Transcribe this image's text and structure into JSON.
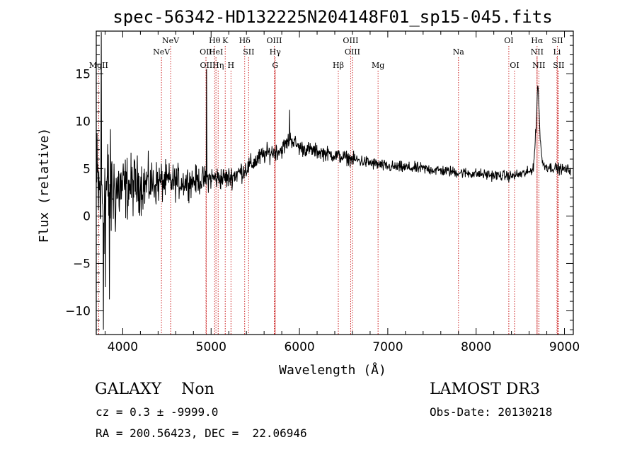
{
  "chart_data": {
    "type": "line",
    "title": "spec-56342-HD132225N204148F01_sp15-045.fits",
    "xlabel": "Wavelength (Å)",
    "ylabel": "Flux (relative)",
    "xlim": [
      3700,
      9100
    ],
    "ylim": [
      -12.5,
      19.5
    ],
    "xticks": [
      4000,
      5000,
      6000,
      7000,
      8000,
      9000
    ],
    "yticks": [
      -10,
      -5,
      0,
      5,
      10,
      15
    ],
    "spectrum_anchors": {
      "x": [
        3700,
        3750,
        3790,
        3850,
        3950,
        4100,
        4300,
        4500,
        4700,
        4900,
        5000,
        5200,
        5400,
        5600,
        5800,
        5900,
        6000,
        6200,
        6400,
        6600,
        6800,
        7000,
        7400,
        7800,
        8200,
        8400,
        8600,
        8650,
        8680,
        8700,
        8720,
        8750,
        8800,
        9000,
        9070
      ],
      "y": [
        3,
        2,
        2.5,
        2.5,
        2.8,
        3.2,
        3.4,
        3.6,
        3.6,
        3.8,
        4,
        4,
        5,
        6.5,
        7,
        8.2,
        7.2,
        6.8,
        6.4,
        6,
        5.6,
        5.2,
        5,
        4.6,
        4.3,
        4.2,
        4.6,
        5.2,
        9.5,
        14.5,
        9,
        5.5,
        5.2,
        4.9,
        4.9
      ]
    },
    "noise_profile": {
      "x": [
        3700,
        3800,
        4000,
        4500,
        5000,
        6000,
        7000,
        8000,
        9000
      ],
      "amplitude": [
        5,
        5,
        2.5,
        1.4,
        0.9,
        0.6,
        0.45,
        0.4,
        0.4
      ]
    },
    "emission_lines": [
      {
        "wavelength": 3727,
        "label": "MgII",
        "row": 3
      },
      {
        "wavelength": 4438,
        "label": "NeV",
        "row": 2
      },
      {
        "wavelength": 4542,
        "label": "NeV",
        "row": 1
      },
      {
        "wavelength": 4942,
        "label": "OII",
        "row": 2
      },
      {
        "wavelength": 4945,
        "label": "OII",
        "row": 3
      },
      {
        "wavelength": 5040,
        "label": "Hθ",
        "row": 1
      },
      {
        "wavelength": 5055,
        "label": "HeI",
        "row": 2
      },
      {
        "wavelength": 5080,
        "label": "Hη",
        "row": 3
      },
      {
        "wavelength": 5160,
        "label": "K",
        "row": 1
      },
      {
        "wavelength": 5225,
        "label": "H",
        "row": 3
      },
      {
        "wavelength": 5380,
        "label": "Hδ",
        "row": 1
      },
      {
        "wavelength": 5425,
        "label": "SII",
        "row": 2
      },
      {
        "wavelength": 5715,
        "label": "OIII",
        "row": 1
      },
      {
        "wavelength": 5725,
        "label": "Hγ",
        "row": 2
      },
      {
        "wavelength": 5725,
        "label": "G",
        "row": 3
      },
      {
        "wavelength": 6440,
        "label": "Hβ",
        "row": 3
      },
      {
        "wavelength": 6580,
        "label": "OIII",
        "row": 1
      },
      {
        "wavelength": 6600,
        "label": "OIII",
        "row": 2
      },
      {
        "wavelength": 6890,
        "label": "Mg",
        "row": 3
      },
      {
        "wavelength": 7800,
        "label": "Na",
        "row": 2
      },
      {
        "wavelength": 8370,
        "label": "OI",
        "row": 1
      },
      {
        "wavelength": 8435,
        "label": "OI",
        "row": 3
      },
      {
        "wavelength": 8690,
        "label": "Hα",
        "row": 1
      },
      {
        "wavelength": 8690,
        "label": "NII",
        "row": 2
      },
      {
        "wavelength": 8710,
        "label": "NII",
        "row": 3
      },
      {
        "wavelength": 8920,
        "label": "SII",
        "row": 1
      },
      {
        "wavelength": 8915,
        "label": "Li",
        "row": 2
      },
      {
        "wavelength": 8935,
        "label": "SII",
        "row": 3
      }
    ],
    "grid": false
  },
  "info": {
    "class_line": "GALAXY    Non",
    "survey": "LAMOST DR3",
    "cz_line": "cz = 0.3 ± -9999.0",
    "obs_date_line": "Obs-Date: 20130218",
    "coords_line": "RA = 200.56423, DEC =  22.06946"
  },
  "colors": {
    "spectrum": "#000000",
    "line_markers": "#cc2222",
    "axes": "#000000"
  }
}
